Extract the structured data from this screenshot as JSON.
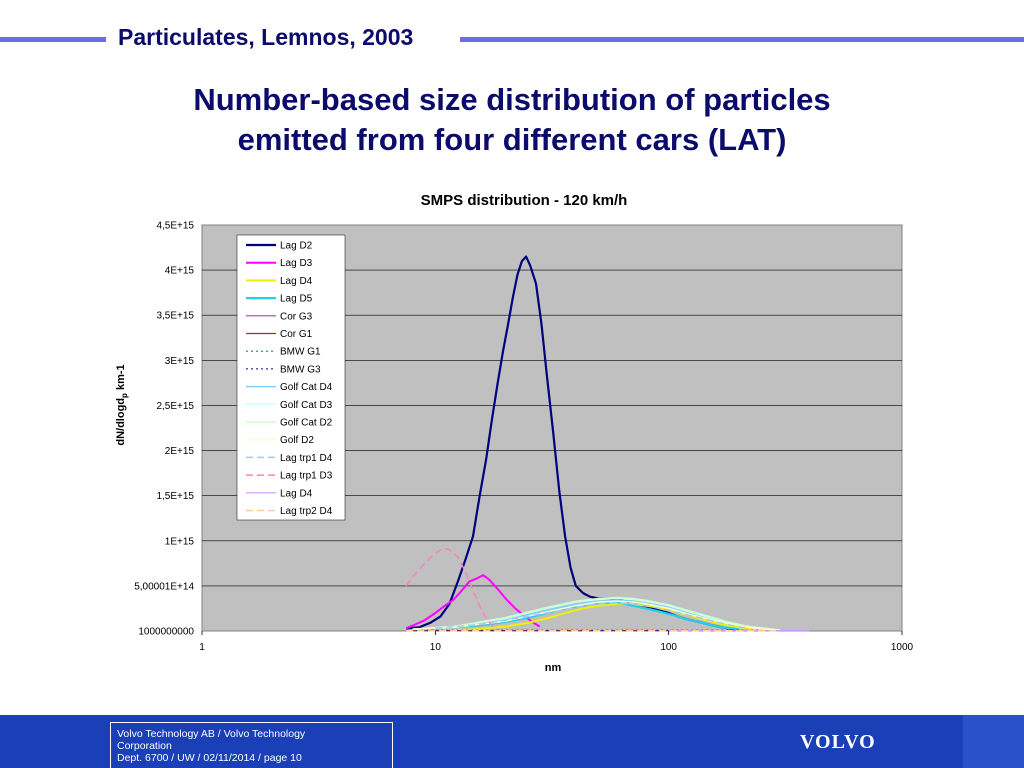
{
  "header": {
    "title": "Particulates, Lemnos, 2003"
  },
  "slide": {
    "title_line1": "Number-based size distribution of particles",
    "title_line2": "emitted from four different cars (LAT)"
  },
  "chart_data": {
    "type": "line",
    "title": "SMPS distribution - 120 km/h",
    "xlabel": "nm",
    "ylabel": "dN/dlogd",
    "ylabel_sub": "p",
    "ylabel_suffix": " km-1",
    "xscale": "log",
    "xlim": [
      1,
      1000
    ],
    "ylim": [
      1000000000,
      4500000000000000
    ],
    "x_ticks": [
      "1",
      "10",
      "100",
      "1000"
    ],
    "y_ticks": [
      "1000000000",
      "5,00001E+14",
      "1E+15",
      "1,5E+15",
      "2E+15",
      "2,5E+15",
      "3E+15",
      "3,5E+15",
      "4E+15",
      "4,5E+15"
    ],
    "grid": true,
    "legend_position": "top-left",
    "colors": {
      "plot_bg": "#c0c0c0",
      "header_line": "#6d6ee6",
      "title": "#0b0b6b",
      "footer": "#1a3fb7"
    },
    "series": [
      {
        "name": "Lag D2",
        "color": "#000080",
        "dash": "",
        "width": 2.2,
        "x": [
          7.5,
          8.5,
          9.5,
          10.5,
          11.5,
          12.5,
          13.5,
          14.5,
          15.5,
          16.5,
          17.5,
          18.5,
          19.5,
          20.5,
          21.5,
          22.5,
          23.5,
          24.5,
          25.5,
          27,
          28.5,
          30,
          32,
          34,
          36,
          38,
          40,
          43,
          46,
          50,
          55,
          60,
          70,
          80,
          90,
          100,
          110,
          120,
          130,
          150,
          170,
          190,
          200
        ],
        "y": [
          30000000000000.0,
          40000000000000.0,
          90000000000000.0,
          160000000000000.0,
          300000000000000.0,
          550000000000000.0,
          800000000000000.0,
          1050000000000000.0,
          1500000000000000.0,
          1900000000000000.0,
          2350000000000000.0,
          2750000000000000.0,
          3100000000000000.0,
          3400000000000000.0,
          3700000000000000.0,
          3950000000000000.0,
          4100000000000000.0,
          4150000000000000.0,
          4050000000000000.0,
          3850000000000000.0,
          3400000000000000.0,
          2850000000000000.0,
          2200000000000000.0,
          1550000000000000.0,
          1050000000000000.0,
          700000000000000.0,
          500000000000000.0,
          420000000000000.0,
          380000000000000.0,
          360000000000000.0,
          360000000000000.0,
          350000000000000.0,
          310000000000000.0,
          270000000000000.0,
          230000000000000.0,
          200000000000000.0,
          160000000000000.0,
          130000000000000.0,
          110000000000000.0,
          70000000000000.0,
          40000000000000.0,
          20000000000000.0,
          10000000000000.0
        ]
      },
      {
        "name": "Lag D3",
        "color": "#ff00ff",
        "dash": "",
        "width": 2,
        "x": [
          7.5,
          8,
          9,
          10,
          11,
          12,
          13,
          14,
          15,
          16,
          17,
          18,
          19,
          20,
          22,
          24,
          26,
          28
        ],
        "y": [
          30000000000000.0,
          60000000000000.0,
          120000000000000.0,
          200000000000000.0,
          280000000000000.0,
          350000000000000.0,
          450000000000000.0,
          550000000000000.0,
          580000000000000.0,
          620000000000000.0,
          570000000000000.0,
          500000000000000.0,
          430000000000000.0,
          360000000000000.0,
          250000000000000.0,
          170000000000000.0,
          100000000000000.0,
          50000000000000.0
        ]
      },
      {
        "name": "Lag D4",
        "color": "#f0f000",
        "dash": "",
        "width": 2,
        "x": [
          12,
          15,
          20,
          25,
          30,
          35,
          40,
          45,
          50,
          55,
          60,
          70,
          80,
          90,
          100,
          120,
          140,
          160,
          180,
          200,
          230,
          260,
          300
        ],
        "y": [
          10000000000000.0,
          20000000000000.0,
          50000000000000.0,
          90000000000000.0,
          140000000000000.0,
          190000000000000.0,
          230000000000000.0,
          260000000000000.0,
          280000000000000.0,
          290000000000000.0,
          300000000000000.0,
          300000000000000.0,
          280000000000000.0,
          260000000000000.0,
          230000000000000.0,
          180000000000000.0,
          130000000000000.0,
          90000000000000.0,
          60000000000000.0,
          40000000000000.0,
          20000000000000.0,
          10000000000000.0,
          5000000000000.0
        ]
      },
      {
        "name": "Lag D5",
        "color": "#22d0e8",
        "dash": "",
        "width": 2.2,
        "x": [
          8,
          10,
          15,
          20,
          25,
          30,
          35,
          40,
          45,
          50,
          55,
          60,
          65,
          70,
          80,
          90,
          100,
          110,
          120,
          130,
          150,
          170,
          200
        ],
        "y": [
          20000000000000.0,
          30000000000000.0,
          60000000000000.0,
          100000000000000.0,
          150000000000000.0,
          200000000000000.0,
          240000000000000.0,
          270000000000000.0,
          290000000000000.0,
          310000000000000.0,
          310000000000000.0,
          320000000000000.0,
          300000000000000.0,
          280000000000000.0,
          250000000000000.0,
          220000000000000.0,
          190000000000000.0,
          160000000000000.0,
          130000000000000.0,
          110000000000000.0,
          70000000000000.0,
          40000000000000.0,
          20000000000000.0
        ]
      },
      {
        "name": "Cor G3",
        "color": "#9a4b9a",
        "dash": "",
        "width": 1,
        "x": [
          7.5,
          300
        ],
        "y": [
          5000000000000.0,
          5000000000000.0
        ]
      },
      {
        "name": "Cor G1",
        "color": "#8b3a1a",
        "dash": "",
        "width": 1,
        "x": [
          7.5,
          300
        ],
        "y": [
          4000000000000.0,
          4000000000000.0
        ]
      },
      {
        "name": "BMW G1",
        "color": "#1b7f7f",
        "dash": "2,3",
        "width": 1.2,
        "x": [
          7.5,
          300
        ],
        "y": [
          6000000000000.0,
          6000000000000.0
        ]
      },
      {
        "name": "BMW G3",
        "color": "#3b2bb0",
        "dash": "2,3",
        "width": 1.2,
        "x": [
          7.5,
          300
        ],
        "y": [
          7000000000000.0,
          7000000000000.0
        ]
      },
      {
        "name": "Golf Cat D4",
        "color": "#7fd0ff",
        "dash": "",
        "width": 1.5,
        "x": [
          8,
          12,
          20,
          30,
          40,
          50,
          60,
          70,
          80,
          100,
          120,
          150,
          180,
          220,
          260,
          300
        ],
        "y": [
          20000000000000.0,
          40000000000000.0,
          120000000000000.0,
          230000000000000.0,
          300000000000000.0,
          330000000000000.0,
          340000000000000.0,
          330000000000000.0,
          310000000000000.0,
          260000000000000.0,
          200000000000000.0,
          130000000000000.0,
          80000000000000.0,
          40000000000000.0,
          20000000000000.0,
          10000000000000.0
        ]
      },
      {
        "name": "Golf Cat D3",
        "color": "#ccffff",
        "dash": "",
        "width": 1.5,
        "x": [
          8,
          12,
          20,
          30,
          40,
          50,
          60,
          70,
          80,
          100,
          120,
          150,
          180,
          220,
          260,
          300
        ],
        "y": [
          20000000000000.0,
          50000000000000.0,
          140000000000000.0,
          250000000000000.0,
          320000000000000.0,
          350000000000000.0,
          360000000000000.0,
          350000000000000.0,
          330000000000000.0,
          280000000000000.0,
          220000000000000.0,
          150000000000000.0,
          90000000000000.0,
          50000000000000.0,
          20000000000000.0,
          10000000000000.0
        ]
      },
      {
        "name": "Golf Cat D2",
        "color": "#ccffcc",
        "dash": "",
        "width": 1.5,
        "x": [
          8,
          12,
          20,
          30,
          40,
          50,
          60,
          70,
          80,
          100,
          120,
          150,
          180,
          220,
          260,
          300
        ],
        "y": [
          20000000000000.0,
          50000000000000.0,
          150000000000000.0,
          260000000000000.0,
          330000000000000.0,
          360000000000000.0,
          370000000000000.0,
          360000000000000.0,
          340000000000000.0,
          290000000000000.0,
          230000000000000.0,
          160000000000000.0,
          100000000000000.0,
          50000000000000.0,
          30000000000000.0,
          10000000000000.0
        ]
      },
      {
        "name": "Golf D2",
        "color": "#ffffcc",
        "dash": "",
        "width": 1.5,
        "x": [
          8,
          12,
          20,
          30,
          40,
          50,
          60,
          70,
          80,
          100,
          120,
          150,
          180,
          220,
          260,
          300
        ],
        "y": [
          20000000000000.0,
          40000000000000.0,
          110000000000000.0,
          210000000000000.0,
          280000000000000.0,
          320000000000000.0,
          330000000000000.0,
          320000000000000.0,
          300000000000000.0,
          250000000000000.0,
          190000000000000.0,
          130000000000000.0,
          80000000000000.0,
          40000000000000.0,
          20000000000000.0,
          10000000000000.0
        ]
      },
      {
        "name": "Lag trp1 D4",
        "color": "#a6caf0",
        "dash": "7,4",
        "width": 1.5,
        "x": [
          10,
          15,
          20,
          30,
          40,
          50,
          60,
          70,
          80,
          100,
          120,
          150,
          180,
          220
        ],
        "y": [
          30000000000000.0,
          70000000000000.0,
          120000000000000.0,
          200000000000000.0,
          260000000000000.0,
          300000000000000.0,
          310000000000000.0,
          300000000000000.0,
          280000000000000.0,
          230000000000000.0,
          180000000000000.0,
          120000000000000.0,
          70000000000000.0,
          30000000000000.0
        ]
      },
      {
        "name": "Lag trp1 D3",
        "color": "#ff80c0",
        "dash": "7,4",
        "width": 1.5,
        "x": [
          7.5,
          8,
          9,
          10,
          10.8,
          11.5,
          12.5,
          13.5,
          14.5,
          15.5,
          16.5,
          17.5,
          19
        ],
        "y": [
          500000000000000.0,
          600000000000000.0,
          750000000000000.0,
          860000000000000.0,
          920000000000000.0,
          900000000000000.0,
          820000000000000.0,
          650000000000000.0,
          450000000000000.0,
          280000000000000.0,
          140000000000000.0,
          60000000000000.0,
          10000000000000.0
        ]
      },
      {
        "name": "Lag D4",
        "color": "#cc99ff",
        "dash": "",
        "width": 1.2,
        "x": [
          100,
          150,
          200,
          250,
          300,
          350,
          400
        ],
        "y": [
          4000000000000.0,
          4000000000000.0,
          4000000000000.0,
          4000000000000.0,
          4000000000000.0,
          4000000000000.0,
          4000000000000.0
        ]
      },
      {
        "name": "Lag trp2 D4",
        "color": "#ffcc99",
        "dash": "7,4",
        "width": 1.5,
        "x": [
          7.5,
          300
        ],
        "y": [
          3000000000000.0,
          3000000000000.0
        ]
      }
    ]
  },
  "footer": {
    "line1": "Volvo Technology AB / Volvo Technology",
    "line2": "Corporation",
    "line3": "Dept. 6700 / UW / 02/11/2014 / page 10",
    "logo": "VOLVO"
  }
}
